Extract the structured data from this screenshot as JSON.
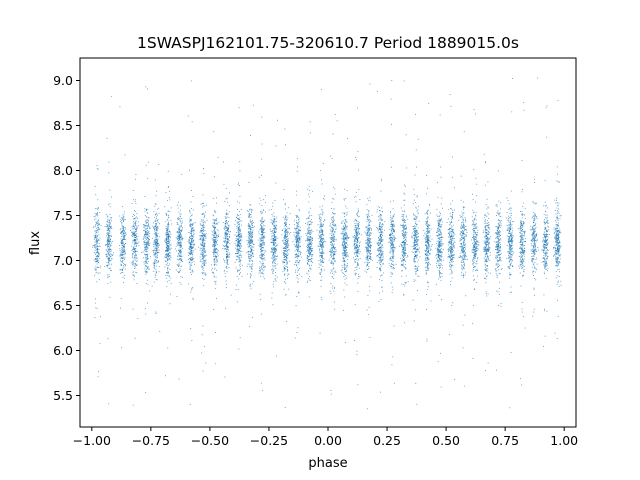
{
  "chart_data": {
    "type": "scatter",
    "title": "1SWASPJ162101.75-320610.7 Period 1889015.0s",
    "xlabel": "phase",
    "ylabel": "flux",
    "xlim": [
      -1.05,
      1.05
    ],
    "ylim": [
      5.15,
      9.25
    ],
    "xticks": [
      -1.0,
      -0.75,
      -0.5,
      -0.25,
      0.0,
      0.25,
      0.5,
      0.75,
      1.0
    ],
    "xtick_labels": [
      "−1.00",
      "−0.75",
      "−0.50",
      "−0.25",
      "0.00",
      "0.25",
      "0.50",
      "0.75",
      "1.00"
    ],
    "yticks": [
      5.5,
      6.0,
      6.5,
      7.0,
      7.5,
      8.0,
      8.5,
      9.0
    ],
    "ytick_labels": [
      "5.5",
      "6.0",
      "6.5",
      "7.0",
      "7.5",
      "8.0",
      "8.5",
      "9.0"
    ],
    "grid": false,
    "marker_color": "#1f77b4",
    "series": [
      {
        "points_description": "phase-folded light curve, dense vertical streaks",
        "band_centers": [
          -0.98,
          -0.93,
          -0.87,
          -0.82,
          -0.77,
          -0.73,
          -0.68,
          -0.63,
          -0.58,
          -0.53,
          -0.48,
          -0.43,
          -0.38,
          -0.33,
          -0.28,
          -0.23,
          -0.18,
          -0.13,
          -0.08,
          -0.03,
          0.02,
          0.07,
          0.12,
          0.17,
          0.22,
          0.27,
          0.32,
          0.37,
          0.42,
          0.47,
          0.52,
          0.57,
          0.62,
          0.67,
          0.72,
          0.77,
          0.82,
          0.87,
          0.92,
          0.97
        ],
        "flux_median": 7.2,
        "flux_core_range": [
          6.6,
          7.7
        ],
        "flux_full_range": [
          5.35,
          9.05
        ]
      }
    ]
  }
}
